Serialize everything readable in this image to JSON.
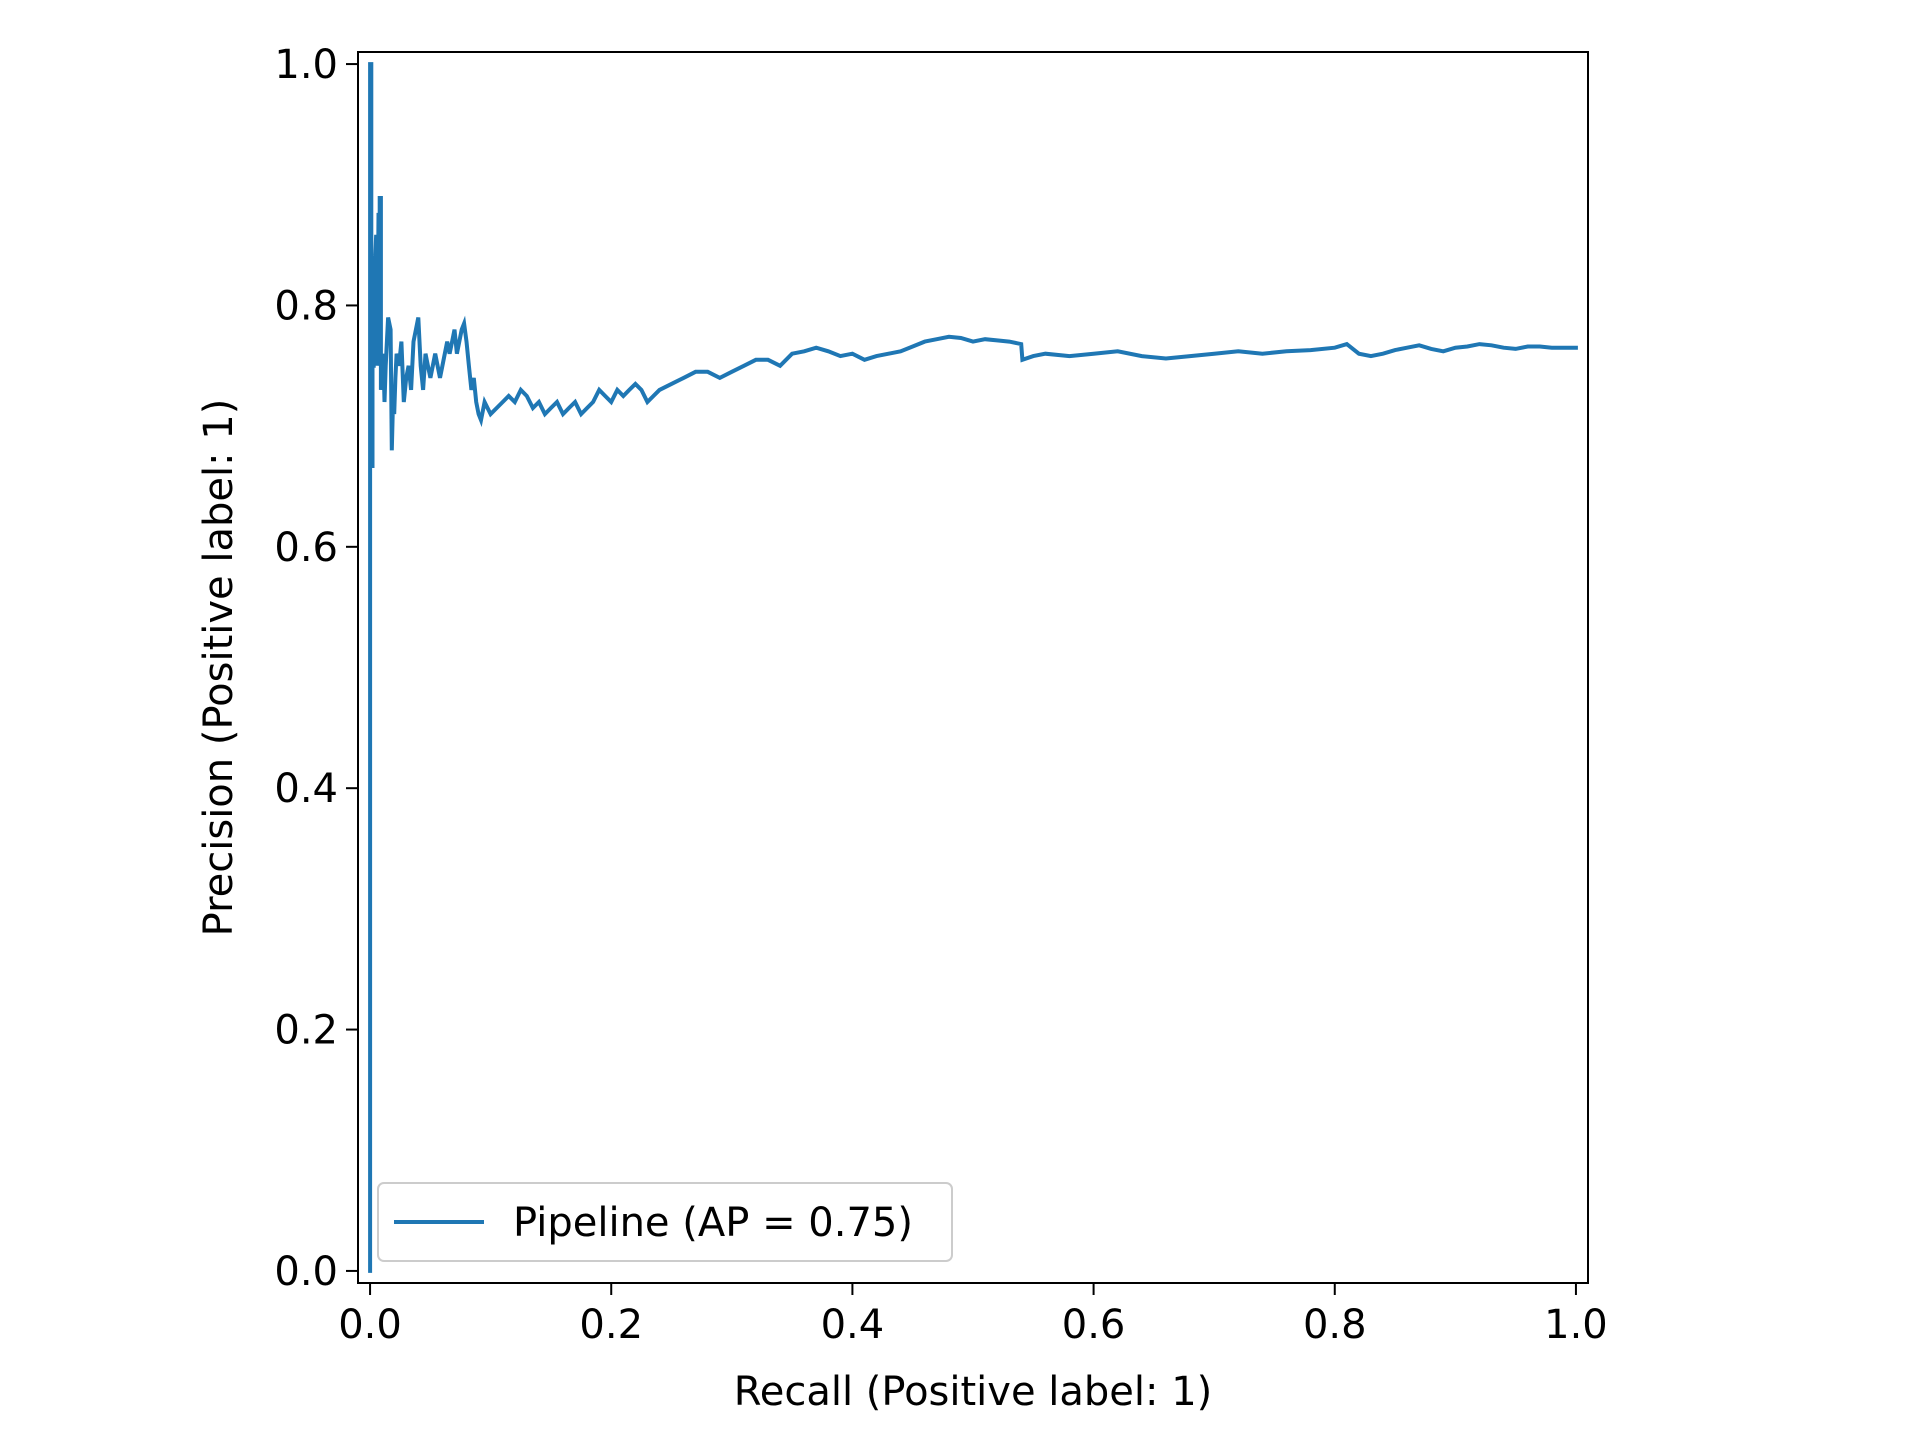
{
  "chart_data": {
    "type": "line",
    "xlabel": "Recall (Positive label: 1)",
    "ylabel": "Precision (Positive label: 1)",
    "xlim": [
      -0.01,
      1.01
    ],
    "ylim": [
      -0.01,
      1.01
    ],
    "xticks": [
      0.0,
      0.2,
      0.4,
      0.6,
      0.8,
      1.0
    ],
    "yticks": [
      0.0,
      0.2,
      0.4,
      0.6,
      0.8,
      1.0
    ],
    "xtick_labels": [
      "0.0",
      "0.2",
      "0.4",
      "0.6",
      "0.8",
      "1.0"
    ],
    "ytick_labels": [
      "0.0",
      "0.2",
      "0.4",
      "0.6",
      "0.8",
      "1.0"
    ],
    "grid": false,
    "legend_position": "lower-left",
    "series": [
      {
        "name": "Pipeline (AP = 0.75)",
        "color": "#1f77b4",
        "x": [
          0.0,
          0.0,
          0.001,
          0.001,
          0.002,
          0.002,
          0.003,
          0.003,
          0.004,
          0.004,
          0.005,
          0.006,
          0.006,
          0.007,
          0.008,
          0.008,
          0.009,
          0.009,
          0.01,
          0.011,
          0.012,
          0.013,
          0.015,
          0.017,
          0.018,
          0.019,
          0.02,
          0.021,
          0.022,
          0.024,
          0.026,
          0.028,
          0.03,
          0.032,
          0.034,
          0.036,
          0.038,
          0.04,
          0.042,
          0.044,
          0.046,
          0.048,
          0.05,
          0.052,
          0.054,
          0.056,
          0.058,
          0.06,
          0.062,
          0.064,
          0.066,
          0.068,
          0.07,
          0.072,
          0.074,
          0.076,
          0.078,
          0.08,
          0.082,
          0.084,
          0.086,
          0.088,
          0.09,
          0.092,
          0.095,
          0.1,
          0.105,
          0.11,
          0.115,
          0.12,
          0.125,
          0.13,
          0.135,
          0.14,
          0.145,
          0.15,
          0.155,
          0.16,
          0.165,
          0.17,
          0.175,
          0.18,
          0.185,
          0.19,
          0.195,
          0.2,
          0.205,
          0.21,
          0.215,
          0.22,
          0.225,
          0.23,
          0.235,
          0.24,
          0.25,
          0.26,
          0.27,
          0.28,
          0.29,
          0.3,
          0.31,
          0.32,
          0.33,
          0.34,
          0.35,
          0.36,
          0.37,
          0.38,
          0.39,
          0.4,
          0.41,
          0.42,
          0.43,
          0.44,
          0.45,
          0.46,
          0.47,
          0.48,
          0.49,
          0.5,
          0.51,
          0.52,
          0.53,
          0.54,
          0.541,
          0.55,
          0.56,
          0.58,
          0.6,
          0.62,
          0.64,
          0.66,
          0.68,
          0.7,
          0.72,
          0.74,
          0.76,
          0.78,
          0.8,
          0.81,
          0.82,
          0.83,
          0.84,
          0.85,
          0.86,
          0.87,
          0.88,
          0.89,
          0.9,
          0.91,
          0.92,
          0.93,
          0.94,
          0.95,
          0.96,
          0.97,
          0.98,
          0.99,
          1.0
        ],
        "y": [
          0.0,
          1.0,
          1.0,
          0.667,
          0.667,
          0.75,
          0.75,
          0.8,
          0.8,
          0.833,
          0.857,
          0.857,
          0.75,
          0.875,
          0.875,
          0.889,
          0.889,
          0.73,
          0.75,
          0.76,
          0.72,
          0.75,
          0.79,
          0.78,
          0.68,
          0.72,
          0.71,
          0.74,
          0.76,
          0.75,
          0.77,
          0.72,
          0.74,
          0.75,
          0.73,
          0.77,
          0.78,
          0.79,
          0.75,
          0.73,
          0.76,
          0.75,
          0.74,
          0.75,
          0.76,
          0.75,
          0.74,
          0.75,
          0.76,
          0.77,
          0.76,
          0.77,
          0.78,
          0.76,
          0.77,
          0.78,
          0.785,
          0.77,
          0.75,
          0.73,
          0.74,
          0.72,
          0.71,
          0.705,
          0.72,
          0.71,
          0.715,
          0.72,
          0.725,
          0.72,
          0.73,
          0.725,
          0.715,
          0.72,
          0.71,
          0.715,
          0.72,
          0.71,
          0.715,
          0.72,
          0.71,
          0.715,
          0.72,
          0.73,
          0.725,
          0.72,
          0.73,
          0.725,
          0.73,
          0.735,
          0.73,
          0.72,
          0.725,
          0.73,
          0.735,
          0.74,
          0.745,
          0.745,
          0.74,
          0.745,
          0.75,
          0.755,
          0.755,
          0.75,
          0.76,
          0.762,
          0.765,
          0.762,
          0.758,
          0.76,
          0.755,
          0.758,
          0.76,
          0.762,
          0.766,
          0.77,
          0.772,
          0.774,
          0.773,
          0.77,
          0.772,
          0.771,
          0.77,
          0.768,
          0.755,
          0.758,
          0.76,
          0.758,
          0.76,
          0.762,
          0.758,
          0.756,
          0.758,
          0.76,
          0.762,
          0.76,
          0.762,
          0.763,
          0.765,
          0.768,
          0.76,
          0.758,
          0.76,
          0.763,
          0.765,
          0.767,
          0.764,
          0.762,
          0.765,
          0.766,
          0.768,
          0.767,
          0.765,
          0.764,
          0.766,
          0.766,
          0.765,
          0.765,
          0.765
        ]
      }
    ]
  }
}
